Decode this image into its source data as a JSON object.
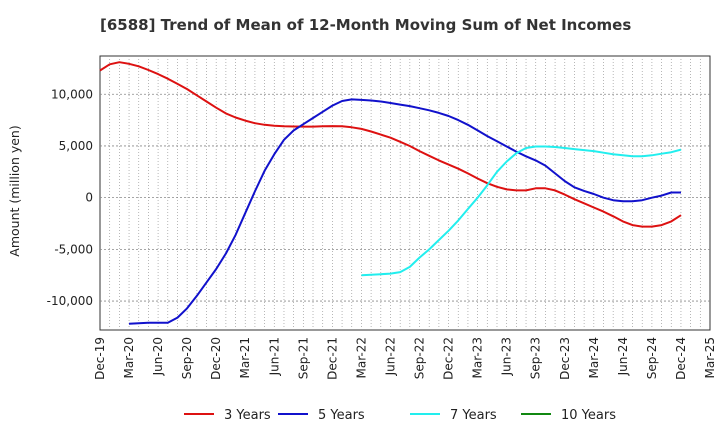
{
  "chart_data": {
    "type": "line",
    "title": "[6588]  Trend of Mean of 12-Month Moving Sum of Net Incomes",
    "xlabel": "",
    "ylabel": "Amount (million yen)",
    "x_tick_labels": [
      "Dec-19",
      "Mar-20",
      "Jun-20",
      "Sep-20",
      "Dec-20",
      "Mar-21",
      "Jun-21",
      "Sep-21",
      "Dec-21",
      "Mar-22",
      "Jun-22",
      "Sep-22",
      "Dec-22",
      "Mar-23",
      "Jun-23",
      "Sep-23",
      "Dec-23",
      "Mar-24",
      "Jun-24",
      "Sep-24",
      "Dec-24",
      "Mar-25"
    ],
    "y_tick_labels": [
      "10,000",
      "5,000",
      "0",
      "-5,000",
      "-10,000"
    ],
    "y_ticks": [
      10000,
      5000,
      0,
      -5000,
      -10000
    ],
    "ylim": [
      -12800,
      13700
    ],
    "grid": true,
    "legend_position": "bottom",
    "series": [
      {
        "name": "3 Years",
        "color": "#dd1111",
        "x": [
          "2019-12",
          "2020-01",
          "2020-02",
          "2020-03",
          "2020-04",
          "2020-05",
          "2020-06",
          "2020-07",
          "2020-08",
          "2020-09",
          "2020-10",
          "2020-11",
          "2020-12",
          "2021-01",
          "2021-02",
          "2021-03",
          "2021-04",
          "2021-05",
          "2021-06",
          "2021-07",
          "2021-08",
          "2021-09",
          "2021-10",
          "2021-11",
          "2021-12",
          "2022-01",
          "2022-02",
          "2022-03",
          "2022-04",
          "2022-05",
          "2022-06",
          "2022-07",
          "2022-08",
          "2022-09",
          "2022-10",
          "2022-11",
          "2022-12",
          "2023-01",
          "2023-02",
          "2023-03",
          "2023-04",
          "2023-05",
          "2023-06",
          "2023-07",
          "2023-08",
          "2023-09",
          "2023-10",
          "2023-11",
          "2023-12",
          "2024-01",
          "2024-02",
          "2024-03",
          "2024-04",
          "2024-05",
          "2024-06",
          "2024-07",
          "2024-08",
          "2024-09",
          "2024-10",
          "2024-11",
          "2024-12"
        ],
        "values": [
          12300,
          12900,
          13100,
          12950,
          12700,
          12350,
          11950,
          11500,
          11000,
          10500,
          9900,
          9300,
          8700,
          8150,
          7750,
          7450,
          7200,
          7050,
          6950,
          6900,
          6880,
          6870,
          6870,
          6900,
          6920,
          6900,
          6800,
          6650,
          6400,
          6100,
          5800,
          5400,
          5000,
          4500,
          4050,
          3600,
          3200,
          2800,
          2350,
          1850,
          1400,
          1050,
          800,
          700,
          700,
          900,
          900,
          700,
          300,
          -150,
          -550,
          -950,
          -1350,
          -1800,
          -2300,
          -2650,
          -2800,
          -2800,
          -2650,
          -2300,
          -1700
        ]
      },
      {
        "name": "5 Years",
        "color": "#1111cc",
        "x": [
          "2020-03",
          "2020-04",
          "2020-05",
          "2020-06",
          "2020-07",
          "2020-08",
          "2020-09",
          "2020-10",
          "2020-11",
          "2020-12",
          "2021-01",
          "2021-02",
          "2021-03",
          "2021-04",
          "2021-05",
          "2021-06",
          "2021-07",
          "2021-08",
          "2021-09",
          "2021-10",
          "2021-11",
          "2021-12",
          "2022-01",
          "2022-02",
          "2022-03",
          "2022-04",
          "2022-05",
          "2022-06",
          "2022-07",
          "2022-08",
          "2022-09",
          "2022-10",
          "2022-11",
          "2022-12",
          "2023-01",
          "2023-02",
          "2023-03",
          "2023-04",
          "2023-05",
          "2023-06",
          "2023-07",
          "2023-08",
          "2023-09",
          "2023-10",
          "2023-11",
          "2023-12",
          "2024-01",
          "2024-02",
          "2024-03",
          "2024-04",
          "2024-05",
          "2024-06",
          "2024-07",
          "2024-08",
          "2024-09",
          "2024-10",
          "2024-11",
          "2024-12"
        ],
        "values": [
          -12200,
          -12150,
          -12100,
          -12100,
          -12100,
          -11600,
          -10700,
          -9500,
          -8200,
          -6900,
          -5400,
          -3600,
          -1500,
          600,
          2600,
          4200,
          5600,
          6500,
          7100,
          7700,
          8300,
          8900,
          9350,
          9500,
          9450,
          9400,
          9300,
          9150,
          9000,
          8850,
          8650,
          8450,
          8200,
          7900,
          7500,
          7050,
          6500,
          5950,
          5450,
          4950,
          4450,
          4000,
          3600,
          3100,
          2350,
          1600,
          1000,
          650,
          350,
          0,
          -250,
          -350,
          -350,
          -250,
          0,
          200,
          500,
          500
        ]
      },
      {
        "name": "7 Years",
        "color": "#22eeee",
        "x": [
          "2022-03",
          "2022-04",
          "2022-05",
          "2022-06",
          "2022-07",
          "2022-08",
          "2022-09",
          "2022-10",
          "2022-11",
          "2022-12",
          "2023-01",
          "2023-02",
          "2023-03",
          "2023-04",
          "2023-05",
          "2023-06",
          "2023-07",
          "2023-08",
          "2023-09",
          "2023-10",
          "2023-11",
          "2023-12",
          "2024-01",
          "2024-02",
          "2024-03",
          "2024-04",
          "2024-05",
          "2024-06",
          "2024-07",
          "2024-08",
          "2024-09",
          "2024-10",
          "2024-11",
          "2024-12"
        ],
        "values": [
          -7500,
          -7450,
          -7400,
          -7350,
          -7200,
          -6700,
          -5800,
          -5000,
          -4100,
          -3200,
          -2200,
          -1100,
          0,
          1200,
          2500,
          3500,
          4300,
          4800,
          4950,
          4950,
          4900,
          4800,
          4700,
          4600,
          4500,
          4350,
          4200,
          4100,
          4000,
          4000,
          4100,
          4250,
          4400,
          4650
        ]
      },
      {
        "name": "10 Years",
        "color": "#118811",
        "x": [],
        "values": []
      }
    ]
  }
}
